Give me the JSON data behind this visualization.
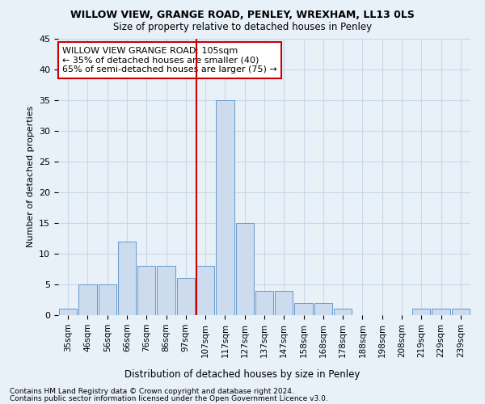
{
  "title1": "WILLOW VIEW, GRANGE ROAD, PENLEY, WREXHAM, LL13 0LS",
  "title2": "Size of property relative to detached houses in Penley",
  "xlabel": "Distribution of detached houses by size in Penley",
  "ylabel": "Number of detached properties",
  "bin_labels": [
    "35sqm",
    "46sqm",
    "56sqm",
    "66sqm",
    "76sqm",
    "86sqm",
    "97sqm",
    "107sqm",
    "117sqm",
    "127sqm",
    "137sqm",
    "147sqm",
    "158sqm",
    "168sqm",
    "178sqm",
    "188sqm",
    "198sqm",
    "208sqm",
    "219sqm",
    "229sqm",
    "239sqm"
  ],
  "values": [
    1,
    5,
    5,
    12,
    8,
    8,
    6,
    8,
    35,
    15,
    4,
    4,
    2,
    2,
    1,
    0,
    0,
    0,
    1,
    1,
    1
  ],
  "bar_color": "#ccdcee",
  "bar_edge_color": "#6699cc",
  "grid_color": "#c8d8e8",
  "background_color": "#e8f0f8",
  "vline_x_index": 7,
  "vline_color": "#cc0000",
  "annotation_text": "WILLOW VIEW GRANGE ROAD: 105sqm\n← 35% of detached houses are smaller (40)\n65% of semi-detached houses are larger (75) →",
  "annotation_box_color": "white",
  "annotation_box_edge": "#cc0000",
  "ylim": [
    0,
    45
  ],
  "yticks": [
    0,
    5,
    10,
    15,
    20,
    25,
    30,
    35,
    40,
    45
  ],
  "footnote1": "Contains HM Land Registry data © Crown copyright and database right 2024.",
  "footnote2": "Contains public sector information licensed under the Open Government Licence v3.0."
}
